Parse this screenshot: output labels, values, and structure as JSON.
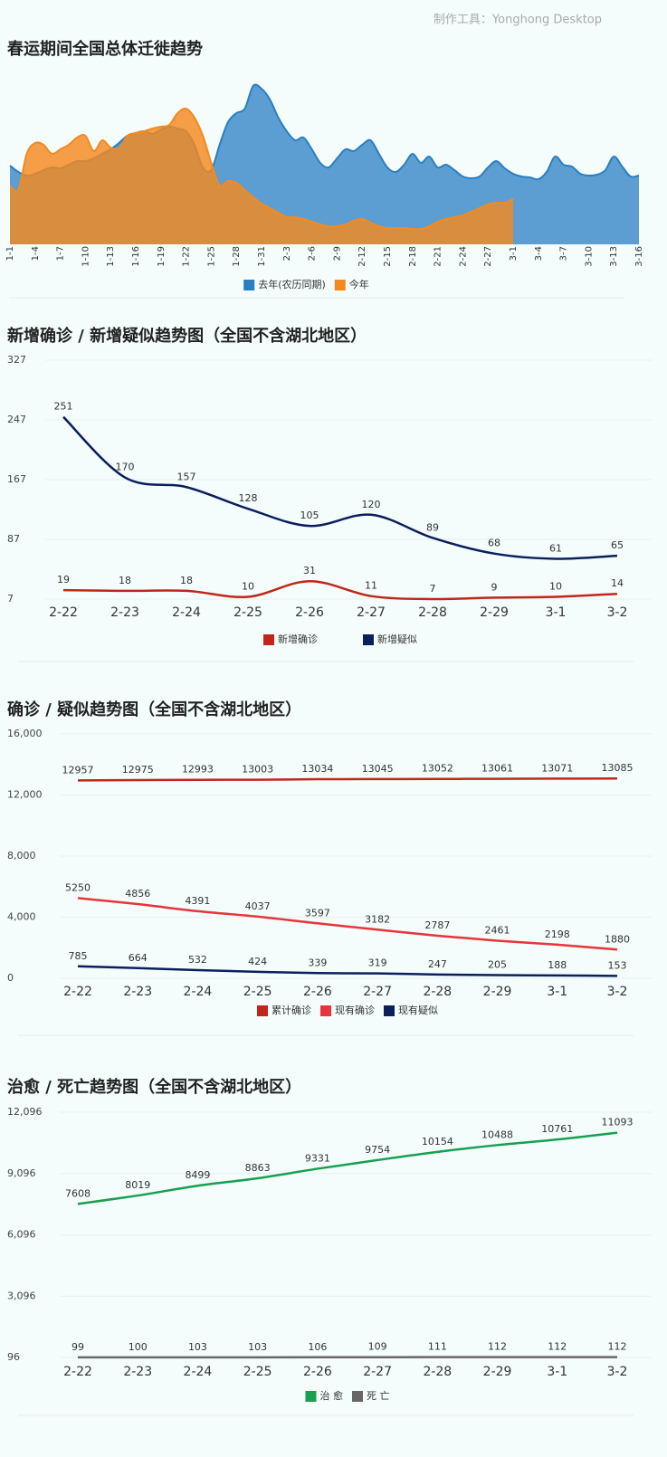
{
  "credit": "制作工具：Yonghong Desktop",
  "chart_data": [
    {
      "type": "area",
      "title": "春运期间全国总体迁徙趋势",
      "categories": [
        "1-1",
        null,
        null,
        "1-4",
        null,
        null,
        "1-7",
        null,
        null,
        "1-10",
        null,
        null,
        "1-13",
        null,
        null,
        "1-16",
        null,
        null,
        "1-19",
        null,
        null,
        "1-22",
        null,
        null,
        "1-25",
        null,
        null,
        "1-28",
        null,
        null,
        "1-31",
        null,
        null,
        "2-3",
        null,
        null,
        "2-6",
        null,
        null,
        "2-9",
        null,
        null,
        "2-12",
        null,
        null,
        "2-15",
        null,
        null,
        "2-18",
        null,
        null,
        "2-21",
        null,
        null,
        "2-24",
        null,
        null,
        "2-27",
        null,
        null,
        "3-1",
        null,
        null,
        "3-4",
        null,
        null,
        "3-7",
        null,
        null,
        "3-10",
        null,
        null,
        "3-13",
        null,
        null,
        "3-16"
      ],
      "ylim": [
        0,
        200
      ],
      "legend": "bottom",
      "series": [
        {
          "name": "去年(农历同期)",
          "color": "#2a7fc3",
          "values": [
            87,
            80,
            76,
            78,
            82,
            85,
            84,
            88,
            92,
            92,
            95,
            100,
            105,
            112,
            120,
            123,
            125,
            122,
            127,
            130,
            128,
            125,
            110,
            85,
            82,
            110,
            135,
            145,
            150,
            175,
            172,
            160,
            140,
            125,
            115,
            118,
            105,
            90,
            85,
            95,
            105,
            103,
            110,
            115,
            100,
            85,
            80,
            88,
            100,
            90,
            97,
            85,
            88,
            82,
            75,
            73,
            75,
            85,
            92,
            84,
            78,
            75,
            74,
            72,
            80,
            97,
            88,
            86,
            78,
            76,
            77,
            82,
            97,
            86,
            75,
            76
          ]
        },
        {
          "name": "今年",
          "color": "#f5891f",
          "values": [
            65,
            60,
            100,
            112,
            110,
            100,
            105,
            110,
            118,
            120,
            103,
            115,
            107,
            106,
            120,
            123,
            125,
            128,
            130,
            132,
            145,
            150,
            140,
            120,
            90,
            65,
            70,
            68,
            60,
            52,
            45,
            40,
            35,
            30,
            30,
            28,
            25,
            22,
            20,
            20,
            22,
            26,
            28,
            24,
            20,
            18,
            18,
            18,
            17,
            17,
            20,
            25,
            28,
            30,
            32,
            36,
            40,
            44,
            46,
            46,
            50,
            null,
            null,
            null,
            null,
            null,
            null,
            null,
            null,
            null,
            null,
            null,
            null,
            null,
            null,
            null
          ]
        }
      ]
    },
    {
      "type": "line",
      "title": "新增确诊 / 新增疑似趋势图（全国不含湖北地区）",
      "categories": [
        "2-22",
        "2-23",
        "2-24",
        "2-25",
        "2-26",
        "2-27",
        "2-28",
        "2-29",
        "3-1",
        "3-2"
      ],
      "ylim": [
        7,
        327
      ],
      "yticks": [
        7,
        87,
        167,
        247,
        327
      ],
      "grid": true,
      "legend": "bottom",
      "series": [
        {
          "name": "新增确诊",
          "color": "#c0271a",
          "values": [
            19,
            18,
            18,
            10,
            31,
            11,
            7,
            9,
            10,
            14
          ]
        },
        {
          "name": "新增疑似",
          "color": "#0b1f5c",
          "values": [
            251,
            170,
            157,
            128,
            105,
            120,
            89,
            68,
            61,
            65
          ]
        }
      ]
    },
    {
      "type": "line",
      "title": "确诊 / 疑似趋势图（全国不含湖北地区）",
      "categories": [
        "2-22",
        "2-23",
        "2-24",
        "2-25",
        "2-26",
        "2-27",
        "2-28",
        "2-29",
        "3-1",
        "3-2"
      ],
      "ylim": [
        0,
        16000
      ],
      "yticks": [
        0,
        {
          "value": 4000,
          "label": "4,000"
        },
        {
          "value": 8000,
          "label": "8,000"
        },
        {
          "value": 12000,
          "label": "12,000"
        },
        {
          "value": 16000,
          "label": "16,000"
        }
      ],
      "grid": true,
      "legend": "bottom",
      "series": [
        {
          "name": "累计确诊",
          "color": "#c0271a",
          "values": [
            12957,
            12975,
            12993,
            13003,
            13034,
            13045,
            13052,
            13061,
            13071,
            13085
          ]
        },
        {
          "name": "现有确诊",
          "color": "#e8343a",
          "values": [
            5250,
            4856,
            4391,
            4037,
            3597,
            3182,
            2787,
            2461,
            2198,
            1880
          ]
        },
        {
          "name": "现有疑似",
          "color": "#0b1f5c",
          "values": [
            785,
            664,
            532,
            424,
            339,
            319,
            247,
            205,
            188,
            153
          ]
        }
      ]
    },
    {
      "type": "line",
      "title": "治愈 / 死亡趋势图（全国不含湖北地区）",
      "categories": [
        "2-22",
        "2-23",
        "2-24",
        "2-25",
        "2-26",
        "2-27",
        "2-28",
        "2-29",
        "3-1",
        "3-2"
      ],
      "ylim": [
        96,
        12096
      ],
      "yticks": [
        96,
        {
          "value": 3096,
          "label": "3,096"
        },
        {
          "value": 6096,
          "label": "6,096"
        },
        {
          "value": 9096,
          "label": "9,096"
        },
        {
          "value": 12096,
          "label": "12,096"
        }
      ],
      "grid": true,
      "legend": "bottom",
      "series": [
        {
          "name": "治 愈",
          "color": "#18a050",
          "values": [
            7608,
            8019,
            8499,
            8863,
            9331,
            9754,
            10154,
            10488,
            10761,
            11093
          ]
        },
        {
          "name": "死 亡",
          "color": "#666666",
          "values": [
            99,
            100,
            103,
            103,
            106,
            109,
            111,
            112,
            112,
            112
          ]
        }
      ]
    }
  ]
}
